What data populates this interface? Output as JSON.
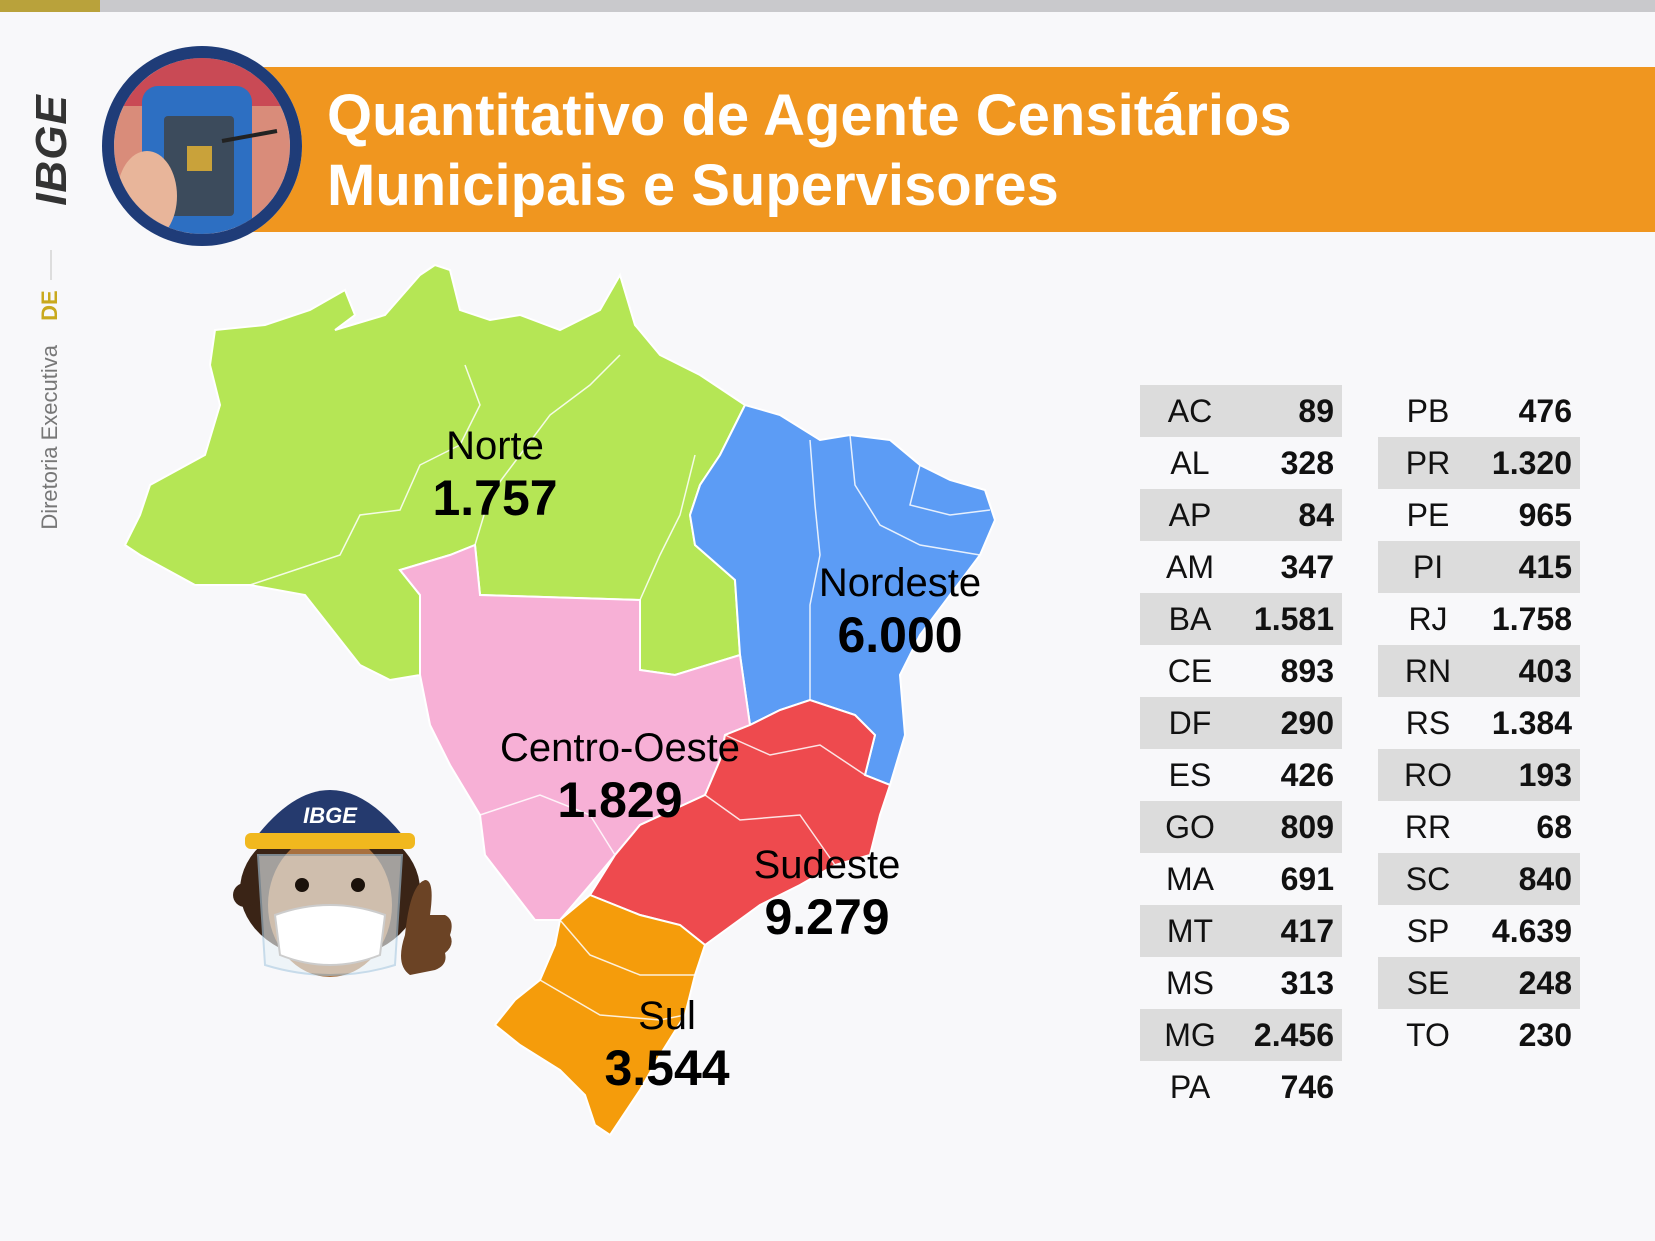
{
  "header": {
    "title_line1": "Quantitativo de Agente Censitários",
    "title_line2": "Municipais e Supervisores"
  },
  "sidebar": {
    "logo": "IBGE",
    "subtitle": "Diretoria Executiva",
    "badge": "DE"
  },
  "mascot": {
    "cap_text": "IBGE"
  },
  "regions": [
    {
      "name": "Norte",
      "value": "1.757",
      "color": "#b5e655"
    },
    {
      "name": "Nordeste",
      "value": "6.000",
      "color": "#5c9cf5"
    },
    {
      "name": "Centro-Oeste",
      "value": "1.829",
      "color": "#f7b0d6"
    },
    {
      "name": "Sudeste",
      "value": "9.279",
      "color": "#ee4a4e"
    },
    {
      "name": "Sul",
      "value": "3.544",
      "color": "#f59c0b"
    }
  ],
  "states_left": [
    {
      "code": "AC",
      "value": "89"
    },
    {
      "code": "AL",
      "value": "328"
    },
    {
      "code": "AP",
      "value": "84"
    },
    {
      "code": "AM",
      "value": "347"
    },
    {
      "code": "BA",
      "value": "1.581"
    },
    {
      "code": "CE",
      "value": "893"
    },
    {
      "code": "DF",
      "value": "290"
    },
    {
      "code": "ES",
      "value": "426"
    },
    {
      "code": "GO",
      "value": "809"
    },
    {
      "code": "MA",
      "value": "691"
    },
    {
      "code": "MT",
      "value": "417"
    },
    {
      "code": "MS",
      "value": "313"
    },
    {
      "code": "MG",
      "value": "2.456"
    },
    {
      "code": "PA",
      "value": "746"
    }
  ],
  "states_right": [
    {
      "code": "PB",
      "value": "476"
    },
    {
      "code": "PR",
      "value": "1.320"
    },
    {
      "code": "PE",
      "value": "965"
    },
    {
      "code": "PI",
      "value": "415"
    },
    {
      "code": "RJ",
      "value": "1.758"
    },
    {
      "code": "RN",
      "value": "403"
    },
    {
      "code": "RS",
      "value": "1.384"
    },
    {
      "code": "RO",
      "value": "193"
    },
    {
      "code": "RR",
      "value": "68"
    },
    {
      "code": "SC",
      "value": "840"
    },
    {
      "code": "SP",
      "value": "4.639"
    },
    {
      "code": "SE",
      "value": "248"
    },
    {
      "code": "TO",
      "value": "230"
    }
  ]
}
